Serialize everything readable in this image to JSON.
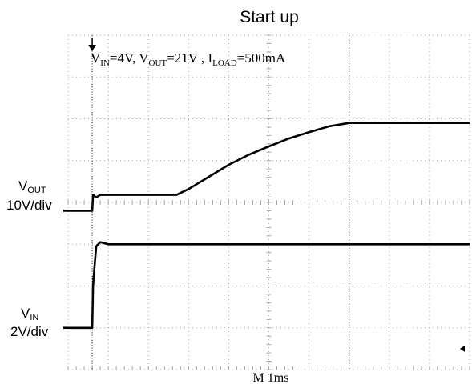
{
  "chart_data": {
    "type": "line",
    "title": "Start up",
    "annotation": {
      "vin_label": "IN",
      "vin_value": "=4V, V",
      "vout_label": "OUT",
      "vout_value": "=21V , I",
      "iload_label": "LOAD",
      "iload_value": "=500mA",
      "prefix_v": "V",
      "prefix_i": "I"
    },
    "timebase": "M 1ms",
    "time_unit": "ms",
    "x_range": [
      0,
      10
    ],
    "divisions": {
      "x": 10,
      "y": 8
    },
    "trigger_time_ms": 0.6,
    "cursor_time_ms": 7.0,
    "grid": true,
    "channels": [
      {
        "name": "VOUT",
        "label_main": "V",
        "label_sub": "OUT",
        "scale": "10V/div",
        "volts_per_div": 10,
        "ground_division": 3.8,
        "points_ms_V": [
          [
            0.0,
            0
          ],
          [
            0.55,
            0
          ],
          [
            0.6,
            0
          ],
          [
            0.62,
            3.8
          ],
          [
            0.7,
            3.2
          ],
          [
            0.8,
            3.8
          ],
          [
            1.0,
            3.8
          ],
          [
            2.0,
            3.8
          ],
          [
            2.6,
            3.8
          ],
          [
            2.7,
            3.8
          ],
          [
            3.0,
            5.2
          ],
          [
            3.5,
            8.1
          ],
          [
            4.0,
            11.0
          ],
          [
            4.5,
            13.4
          ],
          [
            5.0,
            15.4
          ],
          [
            5.5,
            17.3
          ],
          [
            6.0,
            18.8
          ],
          [
            6.5,
            20.2
          ],
          [
            7.0,
            21.0
          ],
          [
            8.0,
            21.0
          ],
          [
            9.0,
            21.0
          ],
          [
            10.0,
            21.0
          ]
        ]
      },
      {
        "name": "VIN",
        "label_main": "V",
        "label_sub": "IN",
        "scale": "2V/div",
        "volts_per_div": 2,
        "ground_division": 1.0,
        "points_ms_V": [
          [
            0.0,
            0
          ],
          [
            0.55,
            0
          ],
          [
            0.6,
            0
          ],
          [
            0.62,
            2.0
          ],
          [
            0.66,
            3.0
          ],
          [
            0.7,
            3.9
          ],
          [
            0.8,
            4.1
          ],
          [
            1.0,
            4.0
          ],
          [
            2.0,
            4.0
          ],
          [
            3.0,
            4.0
          ],
          [
            4.0,
            4.0
          ],
          [
            5.0,
            4.0
          ],
          [
            6.0,
            4.0
          ],
          [
            7.0,
            4.0
          ],
          [
            8.0,
            4.0
          ],
          [
            9.0,
            4.0
          ],
          [
            10.0,
            4.0
          ]
        ]
      }
    ]
  }
}
